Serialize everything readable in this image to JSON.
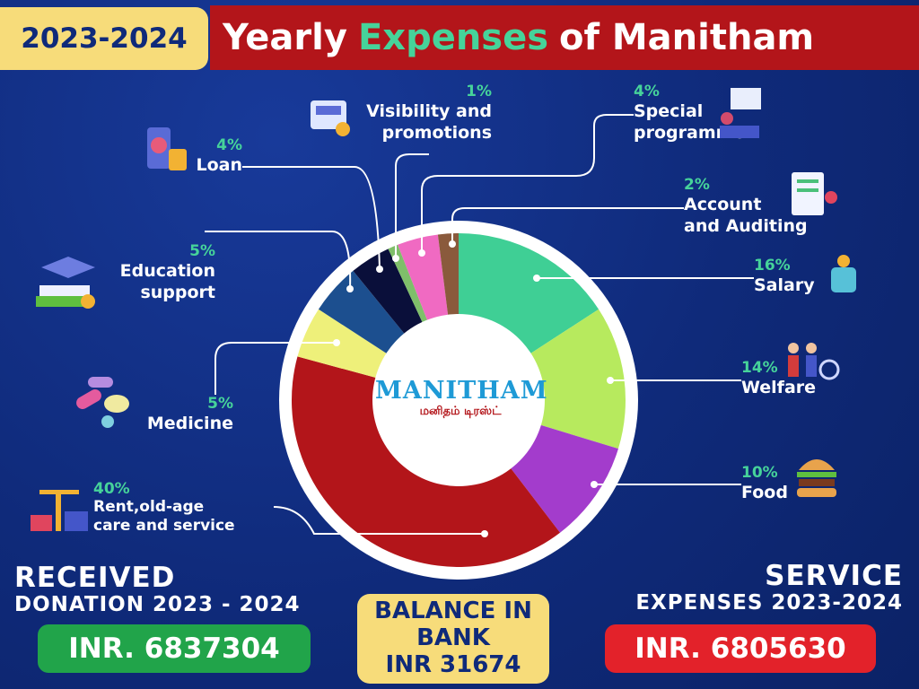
{
  "header": {
    "year": "2023-2024",
    "title_pre": "Yearly",
    "title_accent": "Expenses",
    "title_post": "of Manitham"
  },
  "logo": {
    "name": "MANITHAM",
    "tamil": "மனிதம் டிரஸ்ட்"
  },
  "chart_data": {
    "type": "pie",
    "title": "Yearly Expenses of Manitham",
    "slices": [
      {
        "label": "Salary",
        "value": 16,
        "pct": "16%",
        "color": "#3fcf95"
      },
      {
        "label": "Welfare",
        "value": 14,
        "pct": "14%",
        "color": "#b7ea5e"
      },
      {
        "label": "Food",
        "value": 10,
        "pct": "10%",
        "color": "#a33ccc"
      },
      {
        "label": "Rent,old-age care  and service",
        "value": 40,
        "pct": "40%",
        "color": "#b3151a"
      },
      {
        "label": "Medicine",
        "value": 5,
        "pct": "5%",
        "color": "#eef07a"
      },
      {
        "label": "Education support",
        "value": 5,
        "pct": "5%",
        "color": "#1c4f8f"
      },
      {
        "label": "Loan",
        "value": 4,
        "pct": "4%",
        "color": "#0a0f3a"
      },
      {
        "label": "Visibility and promotions",
        "value": 1,
        "pct": "1%",
        "color": "#7fbf6a"
      },
      {
        "label": "Special programme",
        "value": 4,
        "pct": "4%",
        "color": "#f06ac2"
      },
      {
        "label": "Account and Auditing",
        "value": 2,
        "pct": "2%",
        "color": "#8a5a3c"
      }
    ]
  },
  "labels": {
    "salary": {
      "pct": "16%",
      "text": "Salary"
    },
    "welfare": {
      "pct": "14%",
      "text": "Welfare"
    },
    "food": {
      "pct": "10%",
      "text": "Food"
    },
    "rent": {
      "pct": "40%",
      "line1": "Rent,old-age",
      "line2": "care  and service"
    },
    "medicine": {
      "pct": "5%",
      "text": "Medicine"
    },
    "education": {
      "pct": "5%",
      "line1": "Education",
      "line2": "support"
    },
    "loan": {
      "pct": "4%",
      "text": "Loan"
    },
    "visibility": {
      "pct": "1%",
      "line1": "Visibility and",
      "line2": "promotions"
    },
    "special": {
      "pct": "4%",
      "line1": "Special",
      "line2": "programme"
    },
    "account": {
      "pct": "2%",
      "line1": "Account",
      "line2": "and Auditing"
    }
  },
  "footer": {
    "received_line1": "RECEIVED",
    "received_line2": "DONATION 2023 - 2024",
    "received_amount": "INR. 6837304",
    "balance_line1": "BALANCE IN",
    "balance_line2": "BANK",
    "balance_line3": "INR 31674",
    "service_line1": "SERVICE",
    "service_line2": "EXPENSES 2023-2024",
    "service_amount": "INR. 6805630"
  },
  "icons": [
    "loan-icon",
    "ads-icon",
    "presentation-icon",
    "audit-icon",
    "salary-jar-icon",
    "welfare-people-icon",
    "burger-icon",
    "pills-icon",
    "graduation-icon",
    "crane-icon"
  ],
  "colors": {
    "accent": "#46d39a",
    "title_bg": "#b3151a",
    "badge": "#f7dc7a",
    "received_pill": "#21a44a",
    "service_pill": "#e3222a"
  }
}
